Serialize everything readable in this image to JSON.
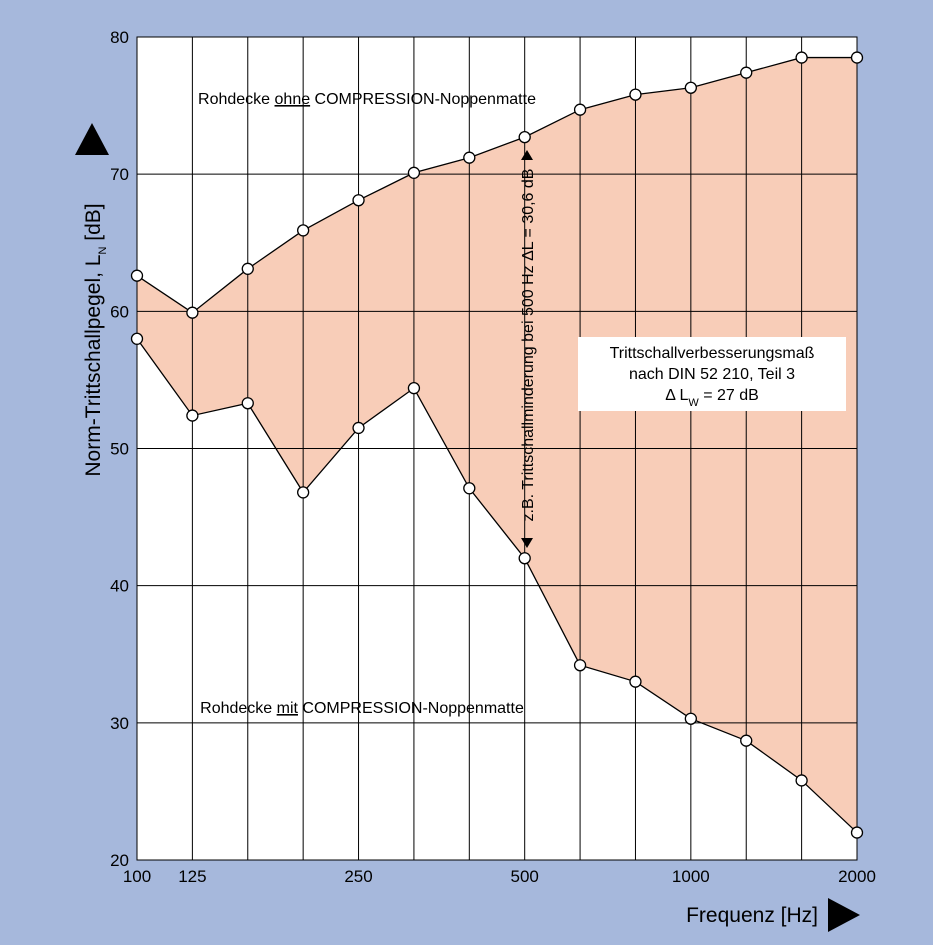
{
  "chart_data": {
    "type": "line",
    "xlabel": "Frequenz [Hz]",
    "ylabel": [
      {
        "text": "Norm-Trittschallpegel, L"
      },
      {
        "text": "N",
        "style": "sub"
      },
      {
        "text": " [dB]"
      }
    ],
    "categories": [
      "100",
      "125",
      null,
      null,
      "250",
      null,
      null,
      "500",
      null,
      null,
      "1000",
      null,
      null,
      "2000"
    ],
    "ylim": [
      20,
      80
    ],
    "yticks": [
      20,
      30,
      40,
      50,
      60,
      70,
      80
    ],
    "grid": true,
    "fill_between": "#f8cdb8",
    "series": [
      {
        "name": [
          {
            "text": "Rohdecke "
          },
          {
            "text": "ohne",
            "style": "underline"
          },
          {
            "text": " COMPRESSION-Noppenmatte"
          }
        ],
        "color": "#000000",
        "values": [
          62.6,
          59.9,
          63.1,
          65.9,
          68.1,
          70.1,
          71.2,
          72.7,
          74.7,
          75.8,
          76.3,
          77.4,
          78.5,
          78.5
        ]
      },
      {
        "name": [
          {
            "text": "Rohdecke "
          },
          {
            "text": "mit",
            "style": "underline"
          },
          {
            "text": " COMPRESSION-Noppenmatte"
          }
        ],
        "color": "#000000",
        "values": [
          58.0,
          52.4,
          53.3,
          46.8,
          51.5,
          54.4,
          47.1,
          42.0,
          34.2,
          33.0,
          30.3,
          28.7,
          25.8,
          22.0
        ]
      }
    ],
    "annotations": [
      {
        "lines": [
          [
            {
              "text": "Trittschallverbesserungsmaß"
            }
          ],
          [
            {
              "text": "nach DIN 52 210, Teil 3"
            }
          ],
          [
            {
              "text": "Δ L"
            },
            {
              "text": "W",
              "style": "sub"
            },
            {
              "text": " = 27 dB"
            }
          ]
        ]
      },
      {
        "lines": [
          [
            {
              "text": "z.B. Trittschallminderung bei 500 Hz ΔL = 30,6 dB"
            }
          ]
        ]
      }
    ]
  }
}
